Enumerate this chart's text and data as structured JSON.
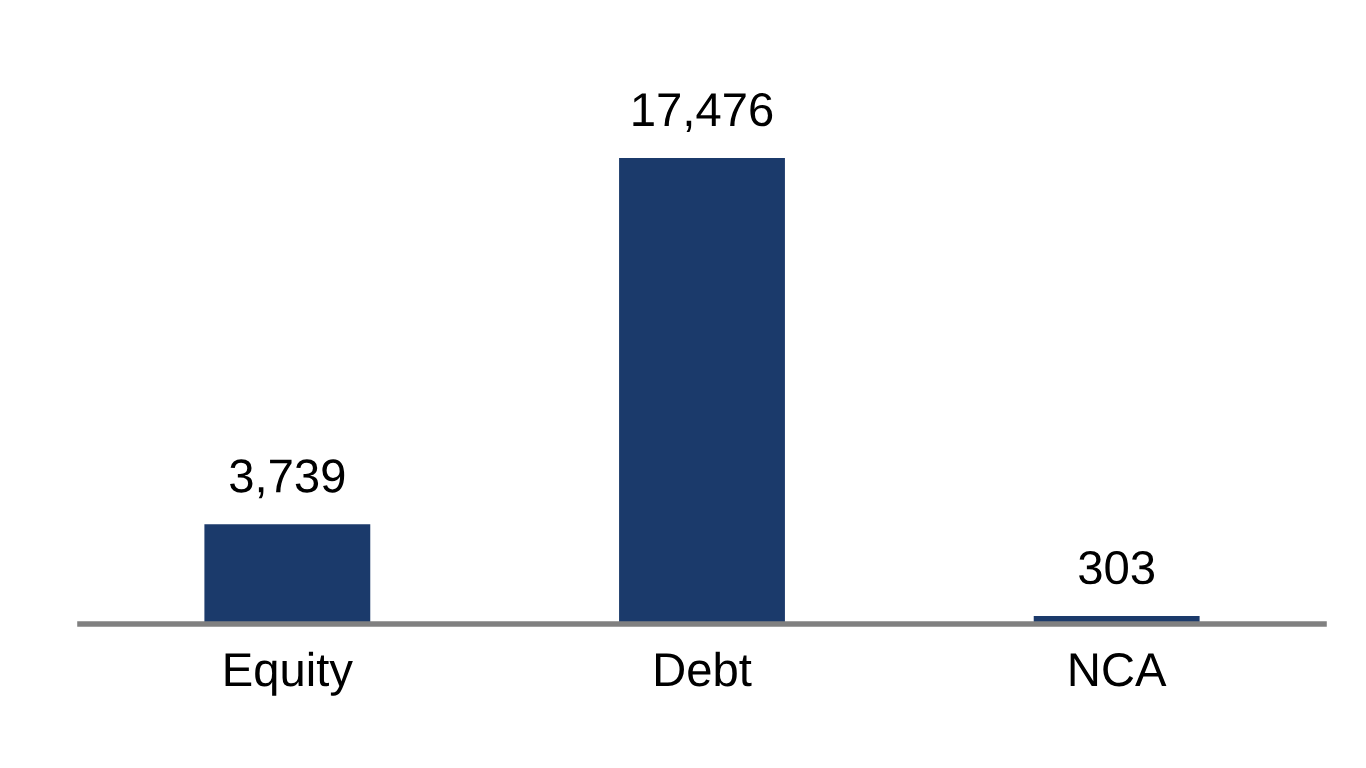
{
  "chart_data": {
    "type": "bar",
    "categories": [
      "Equity",
      "Debt",
      "NCA"
    ],
    "values": [
      3739,
      17476,
      303
    ],
    "value_labels": [
      "3,739",
      "17,476",
      "303"
    ],
    "color": "#1b3a6b",
    "grid": false,
    "legend": false
  }
}
